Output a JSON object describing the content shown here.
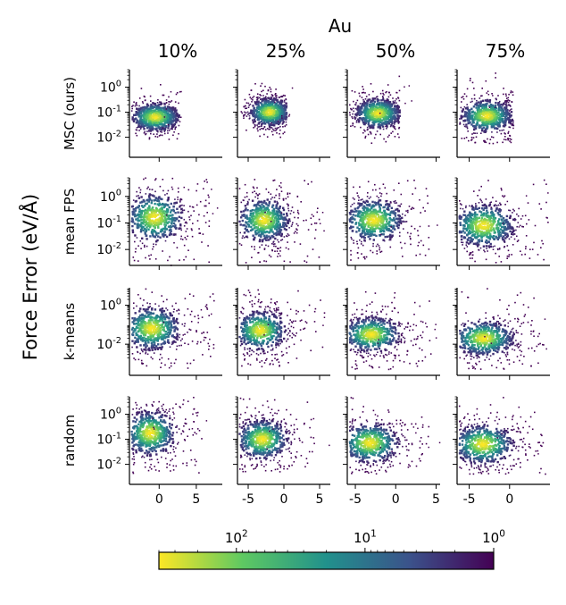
{
  "chart_data": {
    "type": "scatter",
    "title": "Au",
    "ylabel": "Force Error (eV/Å)",
    "columns": [
      "10%",
      "25%",
      "50%",
      "75%"
    ],
    "rows": [
      "MSC (ours)",
      "mean FPS",
      "k-means",
      "random"
    ],
    "y_scale": "log",
    "row_y_ticks": [
      [
        "10^0",
        "10^-1",
        "10^-2"
      ],
      [
        "10^0",
        "10^-1",
        "10^-2"
      ],
      [
        "10^0",
        "10^-2"
      ],
      [
        "10^0",
        "10^-1",
        "10^-2"
      ]
    ],
    "row_y_tick_values": [
      [
        1,
        0.1,
        0.01
      ],
      [
        1,
        0.1,
        0.01
      ],
      [
        1,
        0.01
      ],
      [
        1,
        0.1,
        0.01
      ]
    ],
    "x_ticks": [
      {
        "labels": [
          "0",
          "5"
        ],
        "values": [
          0,
          5
        ]
      },
      {
        "labels": [
          "-5",
          "0",
          "5"
        ],
        "values": [
          -5,
          0,
          5
        ]
      },
      {
        "labels": [
          "-5",
          "0",
          "5"
        ],
        "values": [
          -5,
          0,
          5
        ]
      },
      {
        "labels": [
          "-5",
          "0"
        ],
        "values": [
          -5,
          0
        ]
      }
    ],
    "col_xlim": [
      [
        -4,
        8.5
      ],
      [
        -6.5,
        6.5
      ],
      [
        -6,
        5.5
      ],
      [
        -6.5,
        5
      ]
    ],
    "row_ylim_log10": [
      [
        -2.8,
        0.7
      ],
      [
        -2.6,
        0.7
      ],
      [
        -3.6,
        0.9
      ],
      [
        -2.8,
        0.7
      ]
    ],
    "clusters": [
      [
        {
          "cx": -0.5,
          "cy": -1.2,
          "sx": 1.6,
          "sy": 0.28,
          "xmax": 2.7,
          "ymin": -2.1,
          "spread": 0.5
        },
        {
          "cx": -2.0,
          "cy": -1.0,
          "sx": 1.4,
          "sy": 0.28,
          "xmax": 0.4,
          "ymin": -2.0,
          "spread": 0.6
        },
        {
          "cx": -2.2,
          "cy": -1.05,
          "sx": 1.4,
          "sy": 0.3,
          "xmax": 0.5,
          "ymin": -2.3,
          "spread": 0.7
        },
        {
          "cx": -2.8,
          "cy": -1.15,
          "sx": 1.6,
          "sy": 0.32,
          "xmax": 0.5,
          "ymin": -2.3,
          "spread": 0.8
        }
      ],
      [
        {
          "cx": -0.6,
          "cy": -0.8,
          "sx": 1.9,
          "sy": 0.45,
          "xmax": 6.8,
          "ymin": -2.6,
          "spread": 1.4
        },
        {
          "cx": -2.8,
          "cy": -0.9,
          "sx": 1.8,
          "sy": 0.4,
          "xmax": 5.0,
          "ymin": -2.5,
          "spread": 1.2
        },
        {
          "cx": -2.7,
          "cy": -0.9,
          "sx": 1.8,
          "sy": 0.4,
          "xmax": 4.2,
          "ymin": -2.4,
          "spread": 1.1
        },
        {
          "cx": -3.2,
          "cy": -1.1,
          "sx": 1.9,
          "sy": 0.4,
          "xmax": 4.8,
          "ymin": -2.5,
          "spread": 1.0
        }
      ],
      [
        {
          "cx": -1.0,
          "cy": -1.2,
          "sx": 1.9,
          "sy": 0.55,
          "xmax": 7.5,
          "ymin": -3.3,
          "spread": 1.3
        },
        {
          "cx": -3.3,
          "cy": -1.3,
          "sx": 1.8,
          "sy": 0.5,
          "xmax": 5.8,
          "ymin": -3.2,
          "spread": 1.2
        },
        {
          "cx": -3.0,
          "cy": -1.5,
          "sx": 1.8,
          "sy": 0.45,
          "xmax": 4.5,
          "ymin": -3.3,
          "spread": 1.1
        },
        {
          "cx": -3.2,
          "cy": -1.7,
          "sx": 1.9,
          "sy": 0.45,
          "xmax": 4.5,
          "ymin": -3.3,
          "spread": 1.0
        }
      ],
      [
        {
          "cx": -1.2,
          "cy": -0.75,
          "sx": 1.7,
          "sy": 0.45,
          "xmax": 6.0,
          "ymin": -2.4,
          "spread": 1.2
        },
        {
          "cx": -3.0,
          "cy": -1.0,
          "sx": 1.8,
          "sy": 0.4,
          "xmax": 5.0,
          "ymin": -2.3,
          "spread": 1.1
        },
        {
          "cx": -3.2,
          "cy": -1.15,
          "sx": 1.8,
          "sy": 0.4,
          "xmax": 4.2,
          "ymin": -2.4,
          "spread": 1.0
        },
        {
          "cx": -3.3,
          "cy": -1.2,
          "sx": 1.9,
          "sy": 0.4,
          "xmax": 4.5,
          "ymin": -2.4,
          "spread": 1.0
        }
      ]
    ],
    "colorbar": {
      "scale": "log",
      "ticks": [
        {
          "label": "10^2",
          "value": 100
        },
        {
          "label": "10^1",
          "value": 10
        },
        {
          "label": "10^0",
          "value": 1
        }
      ],
      "range": [
        400,
        1
      ],
      "colors": [
        "#fde725",
        "#5ec962",
        "#21918c",
        "#3b528b",
        "#440154"
      ]
    }
  }
}
